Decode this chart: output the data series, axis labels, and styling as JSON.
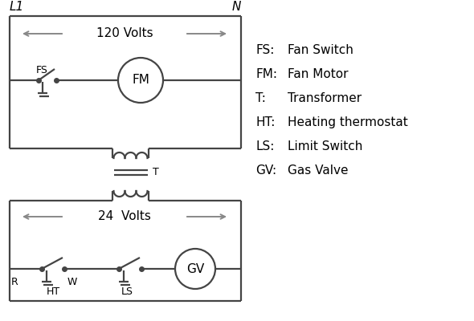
{
  "bg_color": "#ffffff",
  "line_color": "#444444",
  "arrow_color": "#888888",
  "text_color": "#000000",
  "legend_items": [
    [
      "FS:",
      "Fan Switch"
    ],
    [
      "FM:",
      "Fan Motor"
    ],
    [
      "T:",
      "Transformer"
    ],
    [
      "HT:",
      "Heating thermostat"
    ],
    [
      "LS:",
      "Limit Switch"
    ],
    [
      "GV:",
      "Gas Valve"
    ]
  ],
  "L1_label": "L1",
  "N_label": "N",
  "volts120_label": "120 Volts",
  "volts24_label": "24  Volts",
  "R_label": "R",
  "W_label": "W",
  "HT_label": "HT",
  "LS_label": "LS",
  "T_label": "T",
  "FS_label": "FS",
  "FM_label": "FM",
  "GV_label": "GV"
}
